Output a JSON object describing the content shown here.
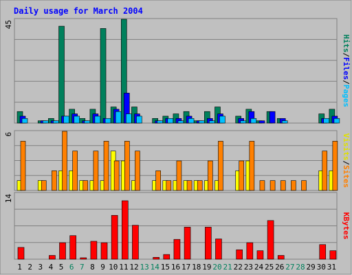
{
  "chart_data": {
    "type": "bar",
    "title": "Daily usage for March 2004",
    "categories": [
      "1",
      "2",
      "3",
      "4",
      "5",
      "6",
      "7",
      "8",
      "9",
      "10",
      "11",
      "12",
      "13",
      "14",
      "15",
      "16",
      "17",
      "18",
      "19",
      "20",
      "21",
      "22",
      "23",
      "24",
      "25",
      "26",
      "27",
      "28",
      "29",
      "30",
      "31"
    ],
    "weekend_days": [
      6,
      7,
      13,
      14,
      20,
      21,
      27,
      28
    ],
    "panels": [
      {
        "id": "hits-files-pages",
        "max_label": "45",
        "ymax": 45,
        "legend": [
          "Pages",
          "/",
          "Files",
          "/",
          "Hits"
        ],
        "series": [
          {
            "name": "Hits",
            "color": "#00805c",
            "values": [
              5,
              0,
              1,
              2,
              42,
              6,
              2,
              6,
              41,
              7,
              45,
              7,
              0,
              2,
              3,
              4,
              5,
              1,
              5,
              7,
              0,
              3,
              6,
              1,
              5,
              2,
              0,
              0,
              0,
              4,
              6
            ]
          },
          {
            "name": "Files",
            "color": "#0000ff",
            "values": [
              3,
              0,
              1,
              1,
              3,
              4,
              1,
              4,
              2,
              6,
              13,
              4,
              0,
              1,
              2,
              2,
              3,
              1,
              2,
              4,
              0,
              2,
              5,
              1,
              5,
              2,
              0,
              0,
              0,
              2,
              3
            ]
          },
          {
            "name": "Pages",
            "color": "#00c0ff",
            "values": [
              2,
              0,
              1,
              1,
              3,
              3,
              1,
              3,
              2,
              5,
              4,
              3,
              0,
              1,
              2,
              1,
              2,
              1,
              1,
              3,
              0,
              1,
              2,
              0,
              0,
              1,
              0,
              0,
              0,
              2,
              2
            ]
          }
        ]
      },
      {
        "id": "visits-sites",
        "max_label": "6",
        "ymax": 6,
        "legend": [
          "Sites",
          "/",
          "Visits"
        ],
        "series": [
          {
            "name": "Visits",
            "color": "#ffff00",
            "values": [
              1,
              0,
              1,
              0,
              2,
              2,
              1,
              1,
              1,
              4,
              3,
              1,
              0,
              1,
              1,
              1,
              1,
              1,
              1,
              1,
              0,
              2,
              3,
              0,
              0,
              0,
              0,
              0,
              0,
              2,
              2
            ]
          },
          {
            "name": "Sites",
            "color": "#ff8000",
            "values": [
              5,
              0,
              1,
              2,
              6,
              4,
              1,
              4,
              5,
              3,
              5,
              4,
              0,
              2,
              1,
              3,
              1,
              1,
              3,
              5,
              0,
              3,
              5,
              1,
              1,
              1,
              1,
              1,
              0,
              4,
              5
            ]
          }
        ]
      },
      {
        "id": "kbytes",
        "max_label": "14",
        "ymax": 14,
        "legend": [
          "KBytes"
        ],
        "series": [
          {
            "name": "KBytes",
            "color": "#ff0000",
            "values": [
              2.5,
              0,
              0,
              0.8,
              3.5,
              5,
              0.3,
              3.8,
              3.5,
              9.3,
              12.4,
              7.2,
              0,
              0.4,
              1,
              4.2,
              6.8,
              0,
              6.8,
              4.3,
              0,
              2,
              3.5,
              1.8,
              8.2,
              0.8,
              0,
              0,
              0,
              3.1,
              1.8
            ]
          }
        ]
      }
    ],
    "colors": {
      "background": "#c0c0c0",
      "title": "#0000ff",
      "grid": "#808080",
      "weekday_label": "#000000",
      "weekend_label": "#00805c",
      "legend_slash": "#000000"
    }
  }
}
